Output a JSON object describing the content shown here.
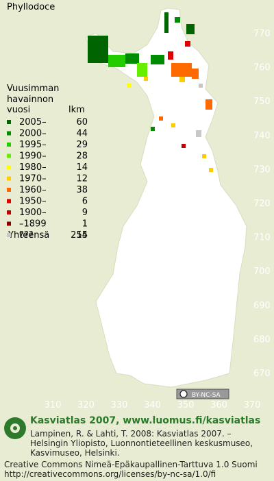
{
  "title": "Phyllodoce",
  "legend": {
    "heading": [
      "Vuusimman",
      "havainnon"
    ],
    "col_labels": [
      "vuosi",
      "lkm"
    ],
    "rows": [
      {
        "label": "2005–",
        "count": 60,
        "color": "#006400"
      },
      {
        "label": "2000–",
        "count": 44,
        "color": "#008c00"
      },
      {
        "label": "1995–",
        "count": 29,
        "color": "#22cc00"
      },
      {
        "label": "1990–",
        "count": 28,
        "color": "#66ee00"
      },
      {
        "label": "1980–",
        "count": 14,
        "color": "#ffff00"
      },
      {
        "label": "1970–",
        "count": 12,
        "color": "#ffcc00"
      },
      {
        "label": "1960–",
        "count": 38,
        "color": "#ff6a00"
      },
      {
        "label": "1950–",
        "count": 6,
        "color": "#e00000"
      },
      {
        "label": "1900–",
        "count": 9,
        "color": "#c00000"
      },
      {
        "label": "–1899",
        "count": 1,
        "color": "#880000"
      },
      {
        "label": "???",
        "count": 14,
        "color": "#c8c8c8"
      }
    ],
    "total": {
      "label": "Yhteensä",
      "count": 255
    }
  },
  "grid": {
    "northing": [
      770,
      760,
      750,
      740,
      730,
      720,
      710,
      700,
      690,
      680,
      670
    ],
    "easting": [
      310,
      320,
      330,
      340,
      350,
      360,
      370
    ]
  },
  "badge": "BY-NC-SA",
  "footer": {
    "headline": "Kasviatlas 2007, www.luomus.fi/kasviatlas",
    "citation": [
      "Lampinen, R. & Lahti, T. 2008: Kasviatlas 2007. –",
      "Helsingin Yliopisto, Luonnontieteellinen keskusmuseo,",
      "Kasvimuseo, Helsinki."
    ],
    "license": [
      "Creative Commons Nimeä-Epäkaupallinen-Tarttuva 1.0 Suomi",
      "http://creativecommons.org/licenses/by-nc-sa/1.0/fi"
    ]
  }
}
